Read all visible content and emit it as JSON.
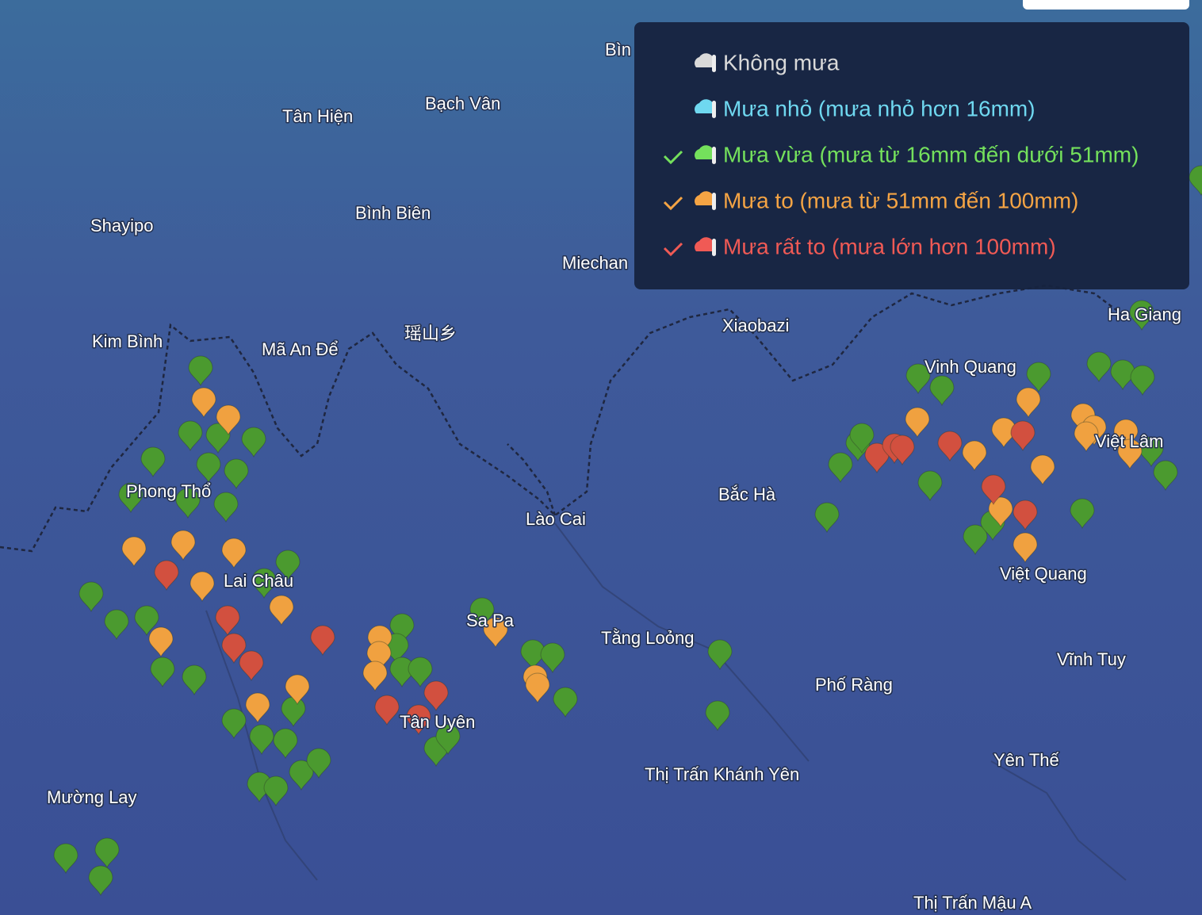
{
  "map": {
    "places": [
      "Bìn",
      "Tân Hiện",
      "Bạch Vân",
      "Shayipo",
      "Bình Biên",
      "Miechan",
      "Kim Bình",
      "Mã An Để",
      "瑶山乡",
      "Xiaobazi",
      "Ha Giang",
      "Vinh Quang",
      "Việt Lâm",
      "Phong Thổ",
      "Bắc Hà",
      "Lào Cai",
      "Lai Châu",
      "Sa Pa",
      "Tằng Loỏng",
      "Việt Quang",
      "Vĩnh Tuy",
      "Phố Ràng",
      "Tân Uyên",
      "Thị Trấn Khánh Yên",
      "Yên Thế",
      "Mường Lay",
      "Thị Trấn Mậu A"
    ],
    "legend": [
      {
        "label": "Không mưa",
        "color": "#d9d9d9",
        "checked": false
      },
      {
        "label": "Mưa nhỏ (mưa nhỏ hơn 16mm)",
        "color": "#6fd8f0",
        "checked": false
      },
      {
        "label": "Mưa vừa (mưa từ 16mm đến dưới 51mm)",
        "color": "#74e05c",
        "checked": true
      },
      {
        "label": "Mưa to (mưa từ 51mm đến 100mm)",
        "color": "#f5a444",
        "checked": true
      },
      {
        "label": "Mưa rất to (mưa lớn hơn 100mm)",
        "color": "#f05a55",
        "checked": true
      }
    ]
  }
}
